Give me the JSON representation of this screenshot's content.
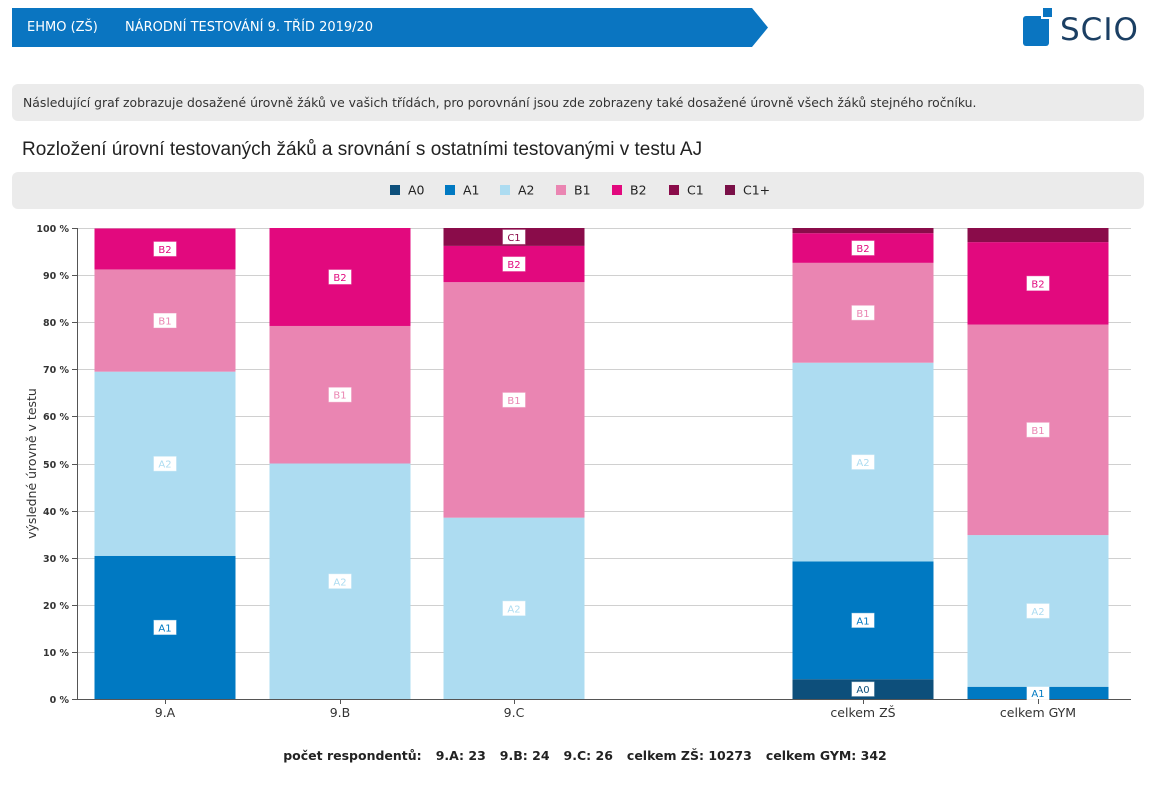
{
  "header": {
    "school": "EHMO (ZŠ)",
    "test_name": "NÁRODNÍ TESTOVÁNÍ 9. TŘÍD 2019/20",
    "logo_text": "SCIO"
  },
  "info_text": "Následující graf zobrazuje dosažené úrovně žáků ve vašich třídách, pro porovnání jsou zde zobrazeny také dosažené úrovně všech žáků stejného ročníku.",
  "colors": {
    "A0": "#0d4f7b",
    "A1": "#0079c2",
    "A2": "#addcf1",
    "B1": "#ea85b2",
    "B2": "#e2097e",
    "C1": "#8a0c4a",
    "C1+": "#7a1048",
    "header_bar": "#0a75c1"
  },
  "chart_data": {
    "type": "bar",
    "stacked": true,
    "title": "Rozložení úrovní testovaných žáků a srovnání s ostatními testovanými v testu AJ",
    "ylabel": "výsledné úrovně v testu",
    "ylim": [
      0,
      100
    ],
    "yticks": [
      "0 %",
      "10 %",
      "20 %",
      "30 %",
      "40 %",
      "50 %",
      "60 %",
      "70 %",
      "80 %",
      "90 %",
      "100 %"
    ],
    "legend": [
      "A0",
      "A1",
      "A2",
      "B1",
      "B2",
      "C1",
      "C1+"
    ],
    "legend_position": "top",
    "grid": true,
    "categories": [
      "9.A",
      "9.B",
      "9.C",
      "celkem ZŠ",
      "celkem GYM"
    ],
    "series": [
      {
        "name": "A0",
        "values": [
          0,
          0,
          0,
          4.2,
          0
        ]
      },
      {
        "name": "A1",
        "values": [
          30.4,
          0,
          0,
          25.0,
          2.6
        ]
      },
      {
        "name": "A2",
        "values": [
          39.1,
          50.0,
          38.5,
          42.2,
          32.2
        ]
      },
      {
        "name": "B1",
        "values": [
          21.7,
          29.2,
          50.0,
          21.2,
          44.7
        ]
      },
      {
        "name": "B2",
        "values": [
          8.7,
          20.8,
          7.7,
          6.3,
          17.5
        ]
      },
      {
        "name": "C1",
        "values": [
          0,
          0,
          3.8,
          1.1,
          3.0
        ]
      },
      {
        "name": "C1+",
        "values": [
          0,
          0,
          0,
          0,
          0
        ]
      }
    ],
    "segment_labels": [
      [
        "A1",
        "A2",
        "B1",
        "B2"
      ],
      [
        "A2",
        "B1",
        "B2"
      ],
      [
        "A2",
        "B1",
        "B2",
        "C1"
      ],
      [
        "A0",
        "A1",
        "A2",
        "B1",
        "B2"
      ],
      [
        "A1",
        "A2",
        "B1",
        "B2"
      ]
    ]
  },
  "footer": {
    "label": "počet respondentů:",
    "counts": [
      "9.A: 23",
      "9.B: 24",
      "9.C: 26",
      "celkem ZŠ: 10273",
      "celkem GYM: 342"
    ]
  }
}
